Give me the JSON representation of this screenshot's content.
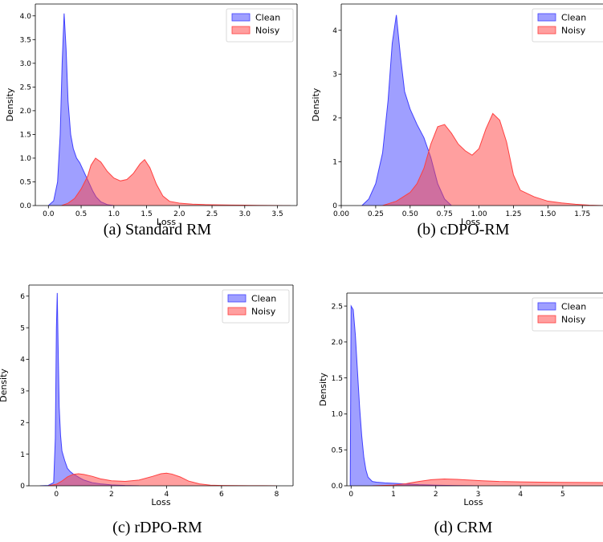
{
  "chart_data": [
    {
      "type": "area",
      "caption": "(a) Standard RM",
      "xlabel": "Loss",
      "ylabel": "Density",
      "xlim": [
        -0.2,
        3.8
      ],
      "ylim": [
        0,
        4.25
      ],
      "xticks": [
        0.0,
        0.5,
        1.0,
        1.5,
        2.0,
        2.5,
        3.0,
        3.5
      ],
      "xtick_labels": [
        "0.0",
        "0.5",
        "1.0",
        "1.5",
        "2.0",
        "2.5",
        "3.0",
        "3.5"
      ],
      "yticks": [
        0.0,
        0.5,
        1.0,
        1.5,
        2.0,
        2.5,
        3.0,
        3.5,
        4.0
      ],
      "ytick_labels": [
        "0.0",
        "0.5",
        "1.0",
        "1.5",
        "2.0",
        "2.5",
        "3.0",
        "3.5",
        "4.0"
      ],
      "legend": "top-right",
      "series": [
        {
          "name": "Clean",
          "color": "#4040ff",
          "x": [
            0.0,
            0.08,
            0.14,
            0.18,
            0.21,
            0.24,
            0.27,
            0.3,
            0.34,
            0.38,
            0.43,
            0.48,
            0.53,
            0.58,
            0.63,
            0.68,
            0.73,
            0.8,
            0.9,
            1.0
          ],
          "y": [
            0.0,
            0.1,
            0.5,
            1.5,
            3.0,
            4.05,
            3.3,
            2.2,
            1.5,
            1.2,
            1.0,
            0.9,
            0.75,
            0.6,
            0.45,
            0.3,
            0.18,
            0.08,
            0.02,
            0.0
          ]
        },
        {
          "name": "Noisy",
          "color": "#ff4040",
          "x": [
            0.2,
            0.3,
            0.4,
            0.5,
            0.6,
            0.65,
            0.72,
            0.8,
            0.9,
            1.0,
            1.1,
            1.2,
            1.3,
            1.4,
            1.47,
            1.55,
            1.65,
            1.75,
            1.85,
            2.0,
            2.2,
            2.4,
            2.6,
            2.8,
            3.0,
            3.2,
            3.4,
            3.6,
            3.7
          ],
          "y": [
            0.0,
            0.05,
            0.15,
            0.35,
            0.62,
            0.85,
            1.0,
            0.92,
            0.72,
            0.58,
            0.52,
            0.55,
            0.68,
            0.88,
            0.97,
            0.8,
            0.45,
            0.2,
            0.09,
            0.05,
            0.03,
            0.02,
            0.015,
            0.01,
            0.008,
            0.005,
            0.003,
            0.001,
            0.0
          ]
        }
      ]
    },
    {
      "type": "area",
      "caption": "(b) cDPO-RM",
      "xlabel": "Loss",
      "ylabel": "Density",
      "xlim": [
        0.0,
        1.9
      ],
      "ylim": [
        0,
        4.6
      ],
      "xticks": [
        0.0,
        0.25,
        0.5,
        0.75,
        1.0,
        1.25,
        1.5,
        1.75
      ],
      "xtick_labels": [
        "0.00",
        "0.25",
        "0.50",
        "0.75",
        "1.00",
        "1.25",
        "1.50",
        "1.75"
      ],
      "yticks": [
        0,
        1,
        2,
        3,
        4
      ],
      "ytick_labels": [
        "0",
        "1",
        "2",
        "3",
        "4"
      ],
      "legend": "top-right",
      "series": [
        {
          "name": "Clean",
          "color": "#4040ff",
          "x": [
            0.15,
            0.2,
            0.25,
            0.3,
            0.34,
            0.37,
            0.4,
            0.43,
            0.46,
            0.5,
            0.55,
            0.6,
            0.65,
            0.7,
            0.75,
            0.8
          ],
          "y": [
            0.0,
            0.15,
            0.5,
            1.2,
            2.4,
            3.7,
            4.35,
            3.4,
            2.6,
            2.2,
            1.85,
            1.55,
            1.1,
            0.5,
            0.15,
            0.0
          ]
        },
        {
          "name": "Noisy",
          "color": "#ff4040",
          "x": [
            0.3,
            0.4,
            0.5,
            0.55,
            0.6,
            0.65,
            0.7,
            0.75,
            0.8,
            0.85,
            0.9,
            0.95,
            1.0,
            1.05,
            1.1,
            1.15,
            1.2,
            1.25,
            1.3,
            1.4,
            1.5,
            1.6,
            1.7,
            1.8,
            1.9
          ],
          "y": [
            0.0,
            0.1,
            0.3,
            0.5,
            0.85,
            1.4,
            1.8,
            1.85,
            1.65,
            1.4,
            1.25,
            1.15,
            1.3,
            1.75,
            2.1,
            1.95,
            1.45,
            0.7,
            0.35,
            0.2,
            0.1,
            0.06,
            0.03,
            0.01,
            0.0
          ]
        }
      ]
    },
    {
      "type": "area",
      "caption": "(c) rDPO-RM",
      "xlabel": "Loss",
      "ylabel": "Density",
      "xlim": [
        -1.0,
        8.6
      ],
      "ylim": [
        0,
        6.35
      ],
      "xticks": [
        0,
        2,
        4,
        6,
        8
      ],
      "xtick_labels": [
        "0",
        "2",
        "4",
        "6",
        "8"
      ],
      "yticks": [
        0,
        1,
        2,
        3,
        4,
        5,
        6
      ],
      "ytick_labels": [
        "0",
        "1",
        "2",
        "3",
        "4",
        "5",
        "6"
      ],
      "legend": "top-right",
      "series": [
        {
          "name": "Clean",
          "color": "#4040ff",
          "x": [
            -0.6,
            -0.3,
            -0.1,
            -0.04,
            0.0,
            0.03,
            0.06,
            0.1,
            0.15,
            0.2,
            0.3,
            0.4,
            0.5,
            0.6,
            0.7,
            0.85,
            1.0,
            1.3,
            1.6,
            2.0,
            2.5,
            3.0
          ],
          "y": [
            0.0,
            0.01,
            0.1,
            1.5,
            5.0,
            6.1,
            4.5,
            2.5,
            1.6,
            1.1,
            0.8,
            0.55,
            0.45,
            0.38,
            0.33,
            0.25,
            0.18,
            0.1,
            0.06,
            0.03,
            0.01,
            0.0
          ]
        },
        {
          "name": "Noisy",
          "color": "#ff4040",
          "x": [
            -0.3,
            0.0,
            0.2,
            0.4,
            0.6,
            0.8,
            1.0,
            1.3,
            1.6,
            2.0,
            2.5,
            3.0,
            3.5,
            3.8,
            4.0,
            4.2,
            4.5,
            4.8,
            5.2,
            5.6,
            6.0,
            6.5,
            7.0,
            7.5,
            8.0
          ],
          "y": [
            0.0,
            0.05,
            0.15,
            0.28,
            0.36,
            0.38,
            0.36,
            0.3,
            0.22,
            0.16,
            0.14,
            0.18,
            0.3,
            0.38,
            0.4,
            0.37,
            0.28,
            0.15,
            0.06,
            0.02,
            0.01,
            0.005,
            0.003,
            0.002,
            0.0
          ]
        }
      ]
    },
    {
      "type": "area",
      "caption": "(d) CRM",
      "xlabel": "Loss",
      "ylabel": "Density",
      "xlim": [
        -0.1,
        5.95
      ],
      "ylim": [
        0,
        2.68
      ],
      "xticks": [
        0,
        1,
        2,
        3,
        4,
        5
      ],
      "xtick_labels": [
        "0",
        "1",
        "2",
        "3",
        "4",
        "5"
      ],
      "yticks": [
        0.0,
        0.5,
        1.0,
        1.5,
        2.0,
        2.5
      ],
      "ytick_labels": [
        "0.0",
        "0.5",
        "1.0",
        "1.5",
        "2.0",
        "2.5"
      ],
      "legend": "top-right",
      "series": [
        {
          "name": "Clean",
          "color": "#4040ff",
          "x": [
            -0.02,
            0.0,
            0.05,
            0.1,
            0.15,
            0.2,
            0.25,
            0.3,
            0.35,
            0.4,
            0.5,
            0.6,
            0.8,
            1.0,
            1.3,
            1.6,
            2.0,
            2.5,
            3.0
          ],
          "y": [
            0.0,
            2.5,
            2.45,
            2.1,
            1.6,
            1.1,
            0.7,
            0.4,
            0.22,
            0.12,
            0.06,
            0.05,
            0.04,
            0.035,
            0.025,
            0.015,
            0.008,
            0.003,
            0.0
          ]
        },
        {
          "name": "Noisy",
          "color": "#ff4040",
          "x": [
            0.5,
            0.8,
            1.0,
            1.3,
            1.6,
            1.9,
            2.2,
            2.5,
            2.8,
            3.1,
            3.5,
            4.0,
            4.5,
            5.0,
            5.5,
            5.95
          ],
          "y": [
            0.0,
            0.005,
            0.01,
            0.03,
            0.06,
            0.085,
            0.095,
            0.09,
            0.08,
            0.07,
            0.06,
            0.055,
            0.05,
            0.048,
            0.046,
            0.045
          ]
        }
      ]
    }
  ]
}
